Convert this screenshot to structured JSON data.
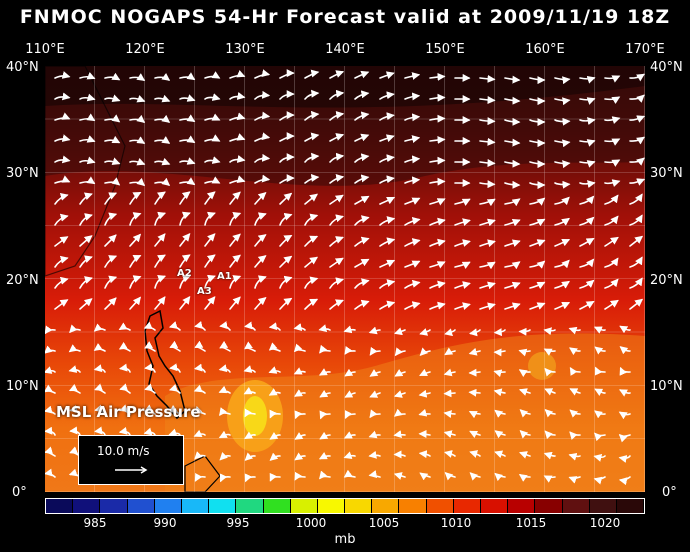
{
  "title": "FNMOC NOGAPS 54-Hr Forecast valid at 2009/11/19 18Z",
  "longitudes": [
    "110°E",
    "120°E",
    "130°E",
    "140°E",
    "150°E",
    "160°E",
    "170°E"
  ],
  "latitudes": [
    "40°N",
    "30°N",
    "20°N",
    "10°N",
    "0°"
  ],
  "stations": [
    "A1",
    "A2",
    "A3"
  ],
  "field_label": "MSL Air Pressure",
  "reference_vector": "10.0 m/s",
  "colorbar": {
    "labels": [
      "985",
      "990",
      "995",
      "1000",
      "1005",
      "1010",
      "1015",
      "1020"
    ],
    "unit": "mb",
    "colors": [
      "#0a0a5a",
      "#10107a",
      "#1a2aa8",
      "#2050d0",
      "#2080f0",
      "#18b8f8",
      "#10e0f0",
      "#20d880",
      "#30e020",
      "#d8f000",
      "#f8f800",
      "#f8d800",
      "#f8a800",
      "#f88000",
      "#f05000",
      "#e82800",
      "#d81000",
      "#b80000",
      "#880000",
      "#601010",
      "#401010",
      "#2a0808"
    ]
  }
}
